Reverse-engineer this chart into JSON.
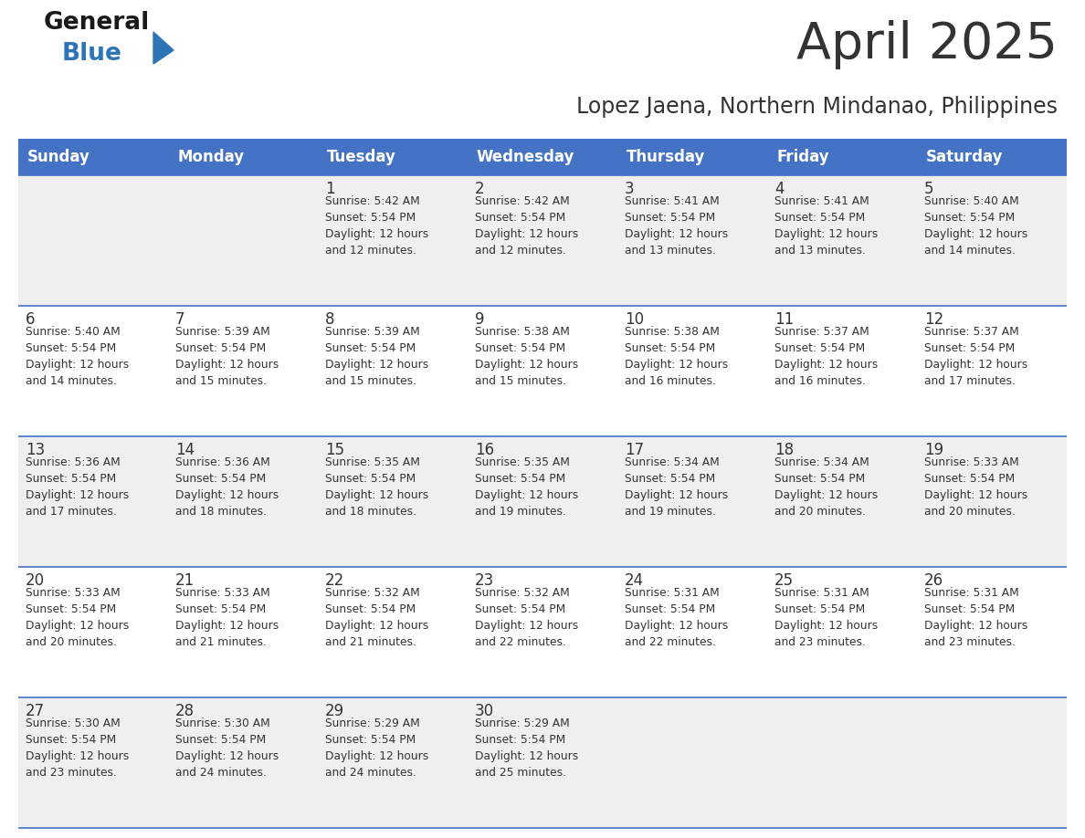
{
  "title": "April 2025",
  "subtitle": "Lopez Jaena, Northern Mindanao, Philippines",
  "header_color": "#4472C4",
  "header_text_color": "#FFFFFF",
  "bg_color": "#FFFFFF",
  "alt_row_color": "#EFEFEF",
  "border_color": "#4472C4",
  "text_color": "#333333",
  "logo_general_color": "#1A1A1A",
  "logo_blue_color": "#2E75B6",
  "days_of_week": [
    "Sunday",
    "Monday",
    "Tuesday",
    "Wednesday",
    "Thursday",
    "Friday",
    "Saturday"
  ],
  "calendar": [
    [
      {
        "day": "",
        "info": ""
      },
      {
        "day": "",
        "info": ""
      },
      {
        "day": "1",
        "info": "Sunrise: 5:42 AM\nSunset: 5:54 PM\nDaylight: 12 hours\nand 12 minutes."
      },
      {
        "day": "2",
        "info": "Sunrise: 5:42 AM\nSunset: 5:54 PM\nDaylight: 12 hours\nand 12 minutes."
      },
      {
        "day": "3",
        "info": "Sunrise: 5:41 AM\nSunset: 5:54 PM\nDaylight: 12 hours\nand 13 minutes."
      },
      {
        "day": "4",
        "info": "Sunrise: 5:41 AM\nSunset: 5:54 PM\nDaylight: 12 hours\nand 13 minutes."
      },
      {
        "day": "5",
        "info": "Sunrise: 5:40 AM\nSunset: 5:54 PM\nDaylight: 12 hours\nand 14 minutes."
      }
    ],
    [
      {
        "day": "6",
        "info": "Sunrise: 5:40 AM\nSunset: 5:54 PM\nDaylight: 12 hours\nand 14 minutes."
      },
      {
        "day": "7",
        "info": "Sunrise: 5:39 AM\nSunset: 5:54 PM\nDaylight: 12 hours\nand 15 minutes."
      },
      {
        "day": "8",
        "info": "Sunrise: 5:39 AM\nSunset: 5:54 PM\nDaylight: 12 hours\nand 15 minutes."
      },
      {
        "day": "9",
        "info": "Sunrise: 5:38 AM\nSunset: 5:54 PM\nDaylight: 12 hours\nand 15 minutes."
      },
      {
        "day": "10",
        "info": "Sunrise: 5:38 AM\nSunset: 5:54 PM\nDaylight: 12 hours\nand 16 minutes."
      },
      {
        "day": "11",
        "info": "Sunrise: 5:37 AM\nSunset: 5:54 PM\nDaylight: 12 hours\nand 16 minutes."
      },
      {
        "day": "12",
        "info": "Sunrise: 5:37 AM\nSunset: 5:54 PM\nDaylight: 12 hours\nand 17 minutes."
      }
    ],
    [
      {
        "day": "13",
        "info": "Sunrise: 5:36 AM\nSunset: 5:54 PM\nDaylight: 12 hours\nand 17 minutes."
      },
      {
        "day": "14",
        "info": "Sunrise: 5:36 AM\nSunset: 5:54 PM\nDaylight: 12 hours\nand 18 minutes."
      },
      {
        "day": "15",
        "info": "Sunrise: 5:35 AM\nSunset: 5:54 PM\nDaylight: 12 hours\nand 18 minutes."
      },
      {
        "day": "16",
        "info": "Sunrise: 5:35 AM\nSunset: 5:54 PM\nDaylight: 12 hours\nand 19 minutes."
      },
      {
        "day": "17",
        "info": "Sunrise: 5:34 AM\nSunset: 5:54 PM\nDaylight: 12 hours\nand 19 minutes."
      },
      {
        "day": "18",
        "info": "Sunrise: 5:34 AM\nSunset: 5:54 PM\nDaylight: 12 hours\nand 20 minutes."
      },
      {
        "day": "19",
        "info": "Sunrise: 5:33 AM\nSunset: 5:54 PM\nDaylight: 12 hours\nand 20 minutes."
      }
    ],
    [
      {
        "day": "20",
        "info": "Sunrise: 5:33 AM\nSunset: 5:54 PM\nDaylight: 12 hours\nand 20 minutes."
      },
      {
        "day": "21",
        "info": "Sunrise: 5:33 AM\nSunset: 5:54 PM\nDaylight: 12 hours\nand 21 minutes."
      },
      {
        "day": "22",
        "info": "Sunrise: 5:32 AM\nSunset: 5:54 PM\nDaylight: 12 hours\nand 21 minutes."
      },
      {
        "day": "23",
        "info": "Sunrise: 5:32 AM\nSunset: 5:54 PM\nDaylight: 12 hours\nand 22 minutes."
      },
      {
        "day": "24",
        "info": "Sunrise: 5:31 AM\nSunset: 5:54 PM\nDaylight: 12 hours\nand 22 minutes."
      },
      {
        "day": "25",
        "info": "Sunrise: 5:31 AM\nSunset: 5:54 PM\nDaylight: 12 hours\nand 23 minutes."
      },
      {
        "day": "26",
        "info": "Sunrise: 5:31 AM\nSunset: 5:54 PM\nDaylight: 12 hours\nand 23 minutes."
      }
    ],
    [
      {
        "day": "27",
        "info": "Sunrise: 5:30 AM\nSunset: 5:54 PM\nDaylight: 12 hours\nand 23 minutes."
      },
      {
        "day": "28",
        "info": "Sunrise: 5:30 AM\nSunset: 5:54 PM\nDaylight: 12 hours\nand 24 minutes."
      },
      {
        "day": "29",
        "info": "Sunrise: 5:29 AM\nSunset: 5:54 PM\nDaylight: 12 hours\nand 24 minutes."
      },
      {
        "day": "30",
        "info": "Sunrise: 5:29 AM\nSunset: 5:54 PM\nDaylight: 12 hours\nand 25 minutes."
      },
      {
        "day": "",
        "info": ""
      },
      {
        "day": "",
        "info": ""
      },
      {
        "day": "",
        "info": ""
      }
    ]
  ],
  "row_colors": [
    "#EFEFEF",
    "#FFFFFF",
    "#EFEFEF",
    "#FFFFFF",
    "#EFEFEF"
  ]
}
